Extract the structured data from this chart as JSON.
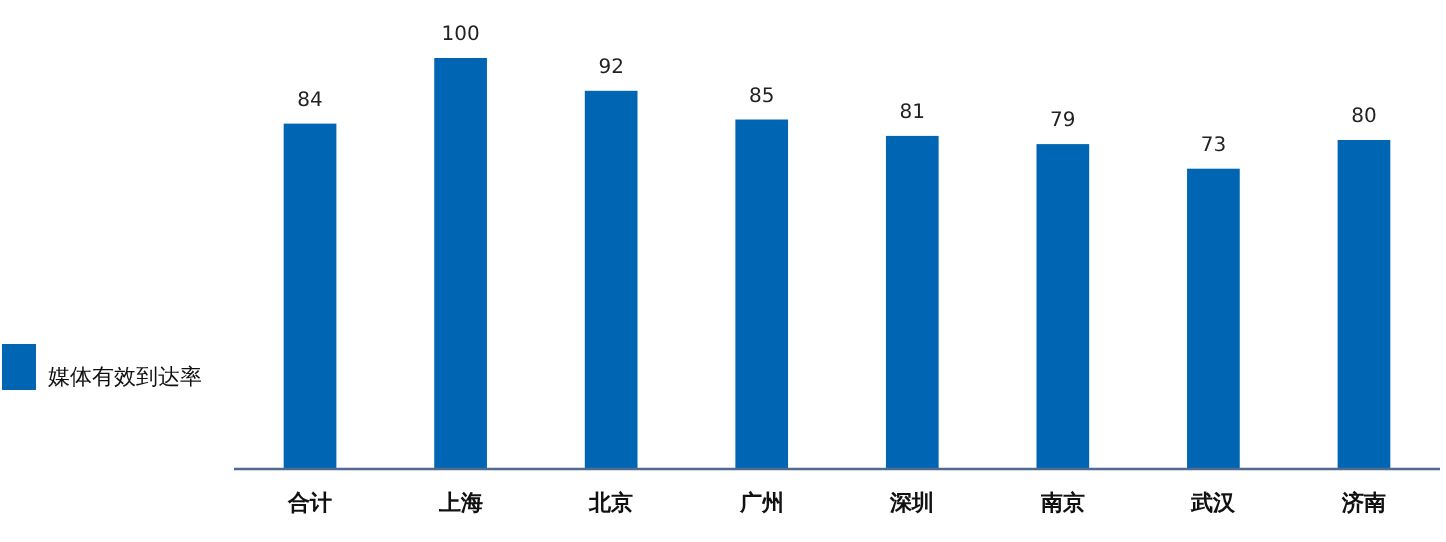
{
  "chart_data": {
    "type": "bar",
    "categories": [
      "合计",
      "上海",
      "北京",
      "广州",
      "深圳",
      "南京",
      "武汉",
      "济南"
    ],
    "series": [
      {
        "name": "媒体有效到达率",
        "color": "#0066b3",
        "values": [
          84,
          100,
          92,
          85,
          81,
          79,
          73,
          80
        ]
      }
    ],
    "data_labels": true,
    "legend": "left"
  }
}
